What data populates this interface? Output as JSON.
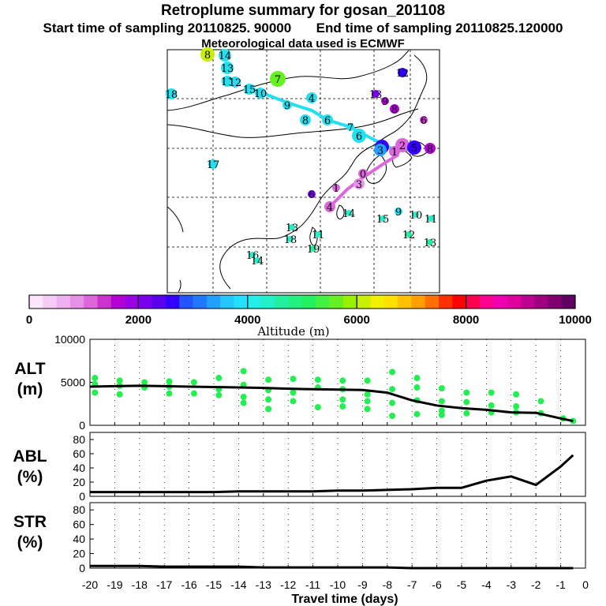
{
  "header": {
    "title": "Retroplume summary for gosan_201108",
    "start_label": "Start time of sampling 20110825. 90000",
    "end_label": "End time of sampling 20110825.120000",
    "met_label": "Meteorological data used is ECMWF"
  },
  "colorbar": {
    "label": "Altitude (m)",
    "ticks": [
      "0",
      "2000",
      "4000",
      "6000",
      "8000",
      "10000"
    ],
    "colors": [
      "#fbe6fb",
      "#f4ccf4",
      "#eeb0ee",
      "#e690e6",
      "#dd66dd",
      "#cc33cc",
      "#b300d6",
      "#9900e6",
      "#7a00f0",
      "#5a00f0",
      "#3300ff",
      "#2255ff",
      "#2277ff",
      "#22a0ff",
      "#22c8ff",
      "#22e0ff",
      "#22f0e8",
      "#22f0c8",
      "#22f0a0",
      "#22f080",
      "#22f060",
      "#44f040",
      "#66f022",
      "#99f000",
      "#c8f000",
      "#f0f000",
      "#ffe000",
      "#ffc000",
      "#ffa000",
      "#ff7000",
      "#ff3000",
      "#ff0000",
      "#ff0050",
      "#ff0090",
      "#f000b0",
      "#e000a0",
      "#c00090",
      "#a00080",
      "#800070",
      "#600060"
    ]
  },
  "map": {
    "day_labels": [
      {
        "text": "8",
        "color": "#c8f000"
      },
      {
        "text": "14",
        "color": "#22e0f0"
      },
      {
        "text": "13",
        "color": "#22e0f0"
      },
      {
        "text": "11",
        "color": "#22e0f0"
      },
      {
        "text": "12",
        "color": "#22e0f0"
      },
      {
        "text": "15",
        "color": "#22e0f0"
      },
      {
        "text": "10",
        "color": "#22e0f0"
      },
      {
        "text": "7",
        "color": "#66f022"
      },
      {
        "text": "18",
        "color": "#22e0f0"
      },
      {
        "text": "9",
        "color": "#22e0f0"
      },
      {
        "text": "4",
        "color": "#22e0f0"
      },
      {
        "text": "8",
        "color": "#22e0f0"
      },
      {
        "text": "6",
        "color": "#22e0f0"
      },
      {
        "text": "7",
        "color": "#22e0f0"
      },
      {
        "text": "6",
        "color": "#22e0f0"
      },
      {
        "text": "17",
        "color": "#22e0f0"
      },
      {
        "text": "4",
        "color": "#3300ff"
      },
      {
        "text": "3",
        "color": "#22a0ff"
      },
      {
        "text": "2",
        "color": "#dd66dd"
      },
      {
        "text": "5",
        "color": "#3300ff"
      },
      {
        "text": "1",
        "color": "#dd66dd"
      },
      {
        "text": "0",
        "color": "#dd66dd"
      },
      {
        "text": "3",
        "color": "#e690e6"
      },
      {
        "text": "12",
        "color": "#3300ff"
      },
      {
        "text": "13",
        "color": "#7a00f0"
      },
      {
        "text": "9",
        "color": "#b300d6"
      },
      {
        "text": "8",
        "color": "#b300d6"
      },
      {
        "text": "6",
        "color": "#cc33cc"
      },
      {
        "text": "8",
        "color": "#b300d6"
      },
      {
        "text": "1",
        "color": "#dd66dd"
      },
      {
        "text": "4",
        "color": "#dd66dd"
      },
      {
        "text": "6",
        "color": "#7a00f0"
      },
      {
        "text": "9",
        "color": "#22e0f0"
      },
      {
        "text": "10",
        "color": "#22f0c8"
      },
      {
        "text": "11",
        "color": "#22f0c8"
      },
      {
        "text": "14",
        "color": "#22f0c8"
      },
      {
        "text": "15",
        "color": "#22f0c8"
      },
      {
        "text": "12",
        "color": "#22f0a0"
      },
      {
        "text": "13",
        "color": "#22f0a0"
      },
      {
        "text": "13",
        "color": "#22f0c8"
      },
      {
        "text": "18",
        "color": "#22f0c8"
      },
      {
        "text": "11",
        "color": "#22f0c8"
      },
      {
        "text": "19",
        "color": "#22f0a0"
      },
      {
        "text": "16",
        "color": "#22f0c8"
      },
      {
        "text": "14",
        "color": "#22f0c8"
      }
    ]
  },
  "chart_data": [
    {
      "type": "line",
      "title": "ALT",
      "ylabel": "ALT (m)",
      "ylim": [
        0,
        10000
      ],
      "yticks": [
        "10000",
        "5000",
        "0"
      ],
      "x": [
        -20,
        -19,
        -18,
        -17,
        -16,
        -15,
        -14,
        -13,
        -12,
        -11,
        -10,
        -9,
        -8,
        -7,
        -6,
        -5,
        -4,
        -3,
        -2,
        -1,
        -0.5
      ],
      "values": [
        4500,
        4550,
        4600,
        4550,
        4500,
        4450,
        4400,
        4350,
        4250,
        4200,
        4150,
        4100,
        3800,
        2900,
        2300,
        2000,
        1800,
        1500,
        1450,
        800,
        500
      ],
      "scatter": [
        {
          "x": -19.8,
          "y": 5500
        },
        {
          "x": -19.8,
          "y": 4800
        },
        {
          "x": -19.8,
          "y": 3800
        },
        {
          "x": -18.8,
          "y": 5200
        },
        {
          "x": -18.8,
          "y": 4600
        },
        {
          "x": -18.8,
          "y": 3600
        },
        {
          "x": -17.8,
          "y": 5000
        },
        {
          "x": -17.8,
          "y": 4400
        },
        {
          "x": -16.8,
          "y": 5100
        },
        {
          "x": -16.8,
          "y": 4500
        },
        {
          "x": -16.8,
          "y": 3700
        },
        {
          "x": -15.8,
          "y": 5000
        },
        {
          "x": -15.8,
          "y": 3700
        },
        {
          "x": -14.8,
          "y": 5500
        },
        {
          "x": -14.8,
          "y": 4200
        },
        {
          "x": -14.8,
          "y": 3500
        },
        {
          "x": -13.8,
          "y": 6300
        },
        {
          "x": -13.8,
          "y": 4700
        },
        {
          "x": -13.8,
          "y": 3300
        },
        {
          "x": -13.8,
          "y": 2600
        },
        {
          "x": -12.8,
          "y": 5300
        },
        {
          "x": -12.8,
          "y": 4100
        },
        {
          "x": -12.8,
          "y": 3000
        },
        {
          "x": -12.8,
          "y": 1900
        },
        {
          "x": -11.8,
          "y": 5400
        },
        {
          "x": -11.8,
          "y": 3800
        },
        {
          "x": -11.8,
          "y": 2800
        },
        {
          "x": -10.8,
          "y": 5300
        },
        {
          "x": -10.8,
          "y": 4400
        },
        {
          "x": -10.8,
          "y": 2100
        },
        {
          "x": -9.8,
          "y": 5200
        },
        {
          "x": -9.8,
          "y": 4200
        },
        {
          "x": -9.8,
          "y": 3000
        },
        {
          "x": -9.8,
          "y": 2200
        },
        {
          "x": -8.8,
          "y": 5200
        },
        {
          "x": -8.8,
          "y": 3600
        },
        {
          "x": -8.8,
          "y": 2800
        },
        {
          "x": -8.8,
          "y": 1900
        },
        {
          "x": -7.8,
          "y": 6200
        },
        {
          "x": -7.8,
          "y": 4200
        },
        {
          "x": -7.8,
          "y": 2600
        },
        {
          "x": -7.8,
          "y": 1100
        },
        {
          "x": -6.8,
          "y": 5500
        },
        {
          "x": -6.8,
          "y": 4400
        },
        {
          "x": -6.8,
          "y": 2900
        },
        {
          "x": -6.8,
          "y": 1300
        },
        {
          "x": -5.8,
          "y": 4300
        },
        {
          "x": -5.8,
          "y": 2800
        },
        {
          "x": -5.8,
          "y": 1700
        },
        {
          "x": -5.8,
          "y": 1200
        },
        {
          "x": -4.8,
          "y": 3800
        },
        {
          "x": -4.8,
          "y": 2700
        },
        {
          "x": -4.8,
          "y": 1400
        },
        {
          "x": -3.8,
          "y": 3800
        },
        {
          "x": -3.8,
          "y": 2300
        },
        {
          "x": -3.8,
          "y": 1500
        },
        {
          "x": -2.8,
          "y": 3600
        },
        {
          "x": -2.8,
          "y": 2200
        },
        {
          "x": -2.8,
          "y": 1500
        },
        {
          "x": -1.8,
          "y": 2800
        },
        {
          "x": -1.8,
          "y": 1400
        },
        {
          "x": -0.9,
          "y": 800
        },
        {
          "x": -0.5,
          "y": 500
        }
      ]
    },
    {
      "type": "line",
      "title": "ABL",
      "ylabel": "ABL (%)",
      "ylim": [
        0,
        90
      ],
      "yticks": [
        "80",
        "60",
        "40",
        "20",
        "0"
      ],
      "x": [
        -20,
        -19,
        -18,
        -17,
        -16,
        -15,
        -14,
        -13,
        -12,
        -11,
        -10,
        -9,
        -8,
        -7,
        -6,
        -5,
        -4,
        -3,
        -2,
        -1,
        -0.5
      ],
      "values": [
        6,
        6,
        6,
        6,
        6,
        6,
        7,
        7,
        7,
        7,
        8,
        8,
        9,
        10,
        12,
        12,
        22,
        28,
        16,
        42,
        58
      ]
    },
    {
      "type": "line",
      "title": "STR",
      "ylabel": "STR (%)",
      "ylim": [
        0,
        90
      ],
      "yticks": [
        "80",
        "60",
        "40",
        "20",
        "0"
      ],
      "x": [
        -20,
        -19,
        -18,
        -17,
        -16,
        -15,
        -14,
        -13,
        -12,
        -11,
        -10,
        -9,
        -8,
        -7,
        -6,
        -5,
        -4,
        -3,
        -2,
        -1,
        -0.5
      ],
      "values": [
        3,
        3,
        3,
        2,
        2,
        2,
        2,
        1,
        1,
        1,
        1,
        1,
        1,
        0,
        0,
        0,
        0,
        0,
        0,
        0,
        0
      ]
    }
  ],
  "xaxis": {
    "label": "Travel time (days)",
    "ticks": [
      "-20",
      "-19",
      "-18",
      "-17",
      "-16",
      "-15",
      "-14",
      "-13",
      "-12",
      "-11",
      "-10",
      "-9",
      "-8",
      "-7",
      "-6",
      "-5",
      "-4",
      "-3",
      "-2",
      "-1",
      "0"
    ]
  },
  "panel_labels": {
    "alt_line1": "ALT",
    "alt_line2": "(m)",
    "abl_line1": "ABL",
    "abl_line2": "(%)",
    "str_line1": "STR",
    "str_line2": "(%)"
  }
}
